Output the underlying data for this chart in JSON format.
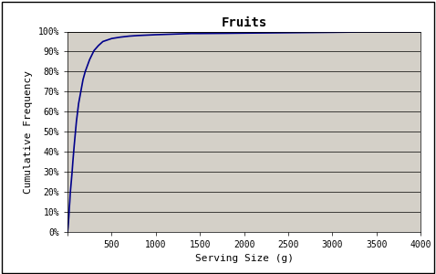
{
  "title": "Fruits",
  "xlabel": "Serving Size (g)",
  "ylabel": "Cumulative Frequency",
  "xlim": [
    0,
    4000
  ],
  "ylim": [
    0,
    1.0
  ],
  "xticks": [
    0,
    500,
    1000,
    1500,
    2000,
    2500,
    3000,
    3500,
    4000
  ],
  "yticks": [
    0.0,
    0.1,
    0.2,
    0.3,
    0.4,
    0.5,
    0.6,
    0.7,
    0.8,
    0.9,
    1.0
  ],
  "ytick_labels": [
    "0%",
    "10%",
    "20%",
    "30%",
    "40%",
    "50%",
    "60%",
    "70%",
    "80%",
    "90%",
    "100%"
  ],
  "background_color": "#d4d0c8",
  "plot_color": "#00008B",
  "line_width": 1.2,
  "outer_bg": "#ffffff",
  "border_color": "#000000",
  "curve_x": [
    0,
    5,
    10,
    15,
    20,
    25,
    30,
    40,
    50,
    60,
    75,
    100,
    125,
    150,
    175,
    200,
    250,
    300,
    350,
    400,
    500,
    600,
    700,
    800,
    900,
    1000,
    1200,
    1400,
    1500,
    1800,
    2000,
    2500,
    3000,
    3200,
    3300,
    3500,
    4000
  ],
  "curve_y": [
    0.0,
    0.02,
    0.05,
    0.08,
    0.12,
    0.15,
    0.19,
    0.24,
    0.29,
    0.35,
    0.43,
    0.55,
    0.64,
    0.7,
    0.76,
    0.8,
    0.86,
    0.905,
    0.93,
    0.95,
    0.965,
    0.972,
    0.977,
    0.98,
    0.982,
    0.984,
    0.987,
    0.99,
    0.99,
    0.991,
    0.992,
    0.994,
    0.996,
    0.997,
    0.999,
    0.999,
    1.0
  ]
}
